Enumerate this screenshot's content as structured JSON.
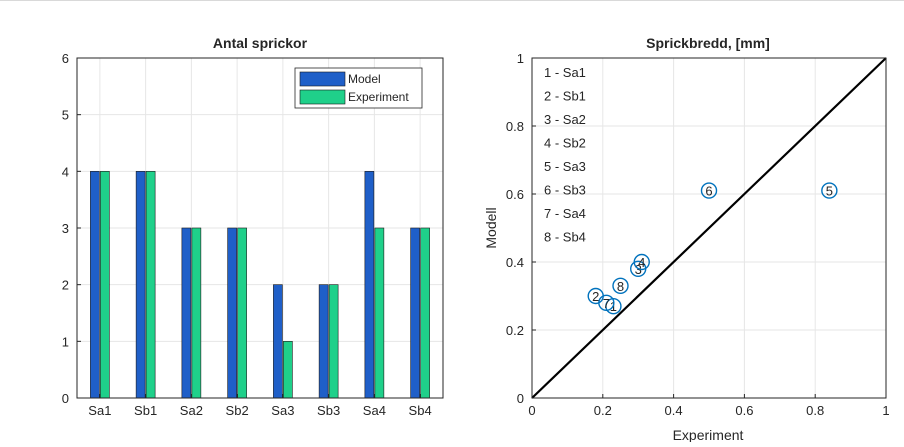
{
  "chart_data": [
    {
      "type": "bar",
      "title": "Antal sprickor",
      "xlabel": "",
      "ylabel": "",
      "categories": [
        "Sa1",
        "Sb1",
        "Sa2",
        "Sb2",
        "Sa3",
        "Sb3",
        "Sa4",
        "Sb4"
      ],
      "series": [
        {
          "name": "Model",
          "values": [
            4,
            4,
            3,
            3,
            2,
            2,
            4,
            3
          ],
          "color": "#1f5fc8"
        },
        {
          "name": "Experiment",
          "values": [
            4,
            4,
            3,
            3,
            1,
            2,
            3,
            3
          ],
          "color": "#1fd08a"
        }
      ],
      "ylim": [
        0,
        6
      ],
      "yticks": [
        "0",
        "1",
        "2",
        "3",
        "4",
        "5",
        "6"
      ],
      "grid": true,
      "legend_placement": "top-right"
    },
    {
      "type": "scatter",
      "title": "Sprickbredd, [mm]",
      "xlabel": "Experiment",
      "ylabel": "Modell",
      "xlim": [
        0,
        1
      ],
      "ylim": [
        0,
        1
      ],
      "xticks": [
        "0",
        "0.2",
        "0.4",
        "0.6",
        "0.8",
        "1"
      ],
      "yticks": [
        "0",
        "0.2",
        "0.4",
        "0.6",
        "0.8",
        "1"
      ],
      "grid": true,
      "points": [
        {
          "label": "1",
          "x": 0.23,
          "y": 0.27
        },
        {
          "label": "2",
          "x": 0.18,
          "y": 0.3
        },
        {
          "label": "3",
          "x": 0.3,
          "y": 0.38
        },
        {
          "label": "4",
          "x": 0.31,
          "y": 0.4
        },
        {
          "label": "5",
          "x": 0.84,
          "y": 0.61
        },
        {
          "label": "6",
          "x": 0.5,
          "y": 0.61
        },
        {
          "label": "7",
          "x": 0.21,
          "y": 0.28
        },
        {
          "label": "8",
          "x": 0.25,
          "y": 0.33
        }
      ],
      "reference_line": {
        "from": [
          0,
          0
        ],
        "to": [
          1,
          1
        ],
        "color": "#000000"
      },
      "marker_color": "#0072bd",
      "key_entries": [
        "1 - Sa1",
        "2 - Sb1",
        "3 - Sa2",
        "4 - Sb2",
        "5 - Sa3",
        "6 - Sb3",
        "7 - Sa4",
        "8 - Sb4"
      ]
    }
  ]
}
